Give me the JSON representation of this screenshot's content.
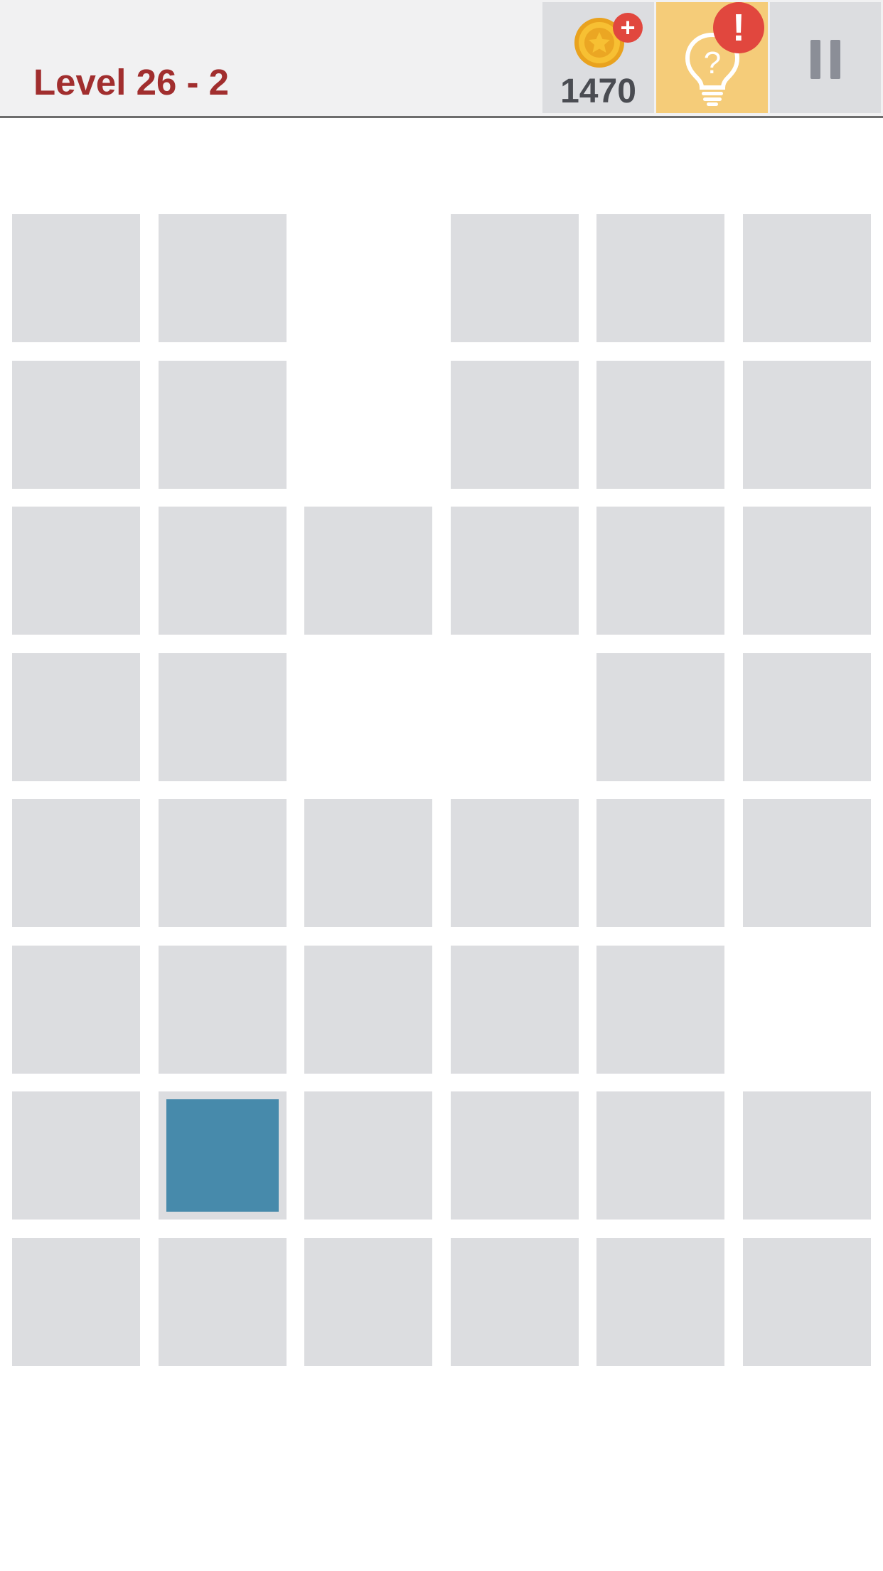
{
  "header": {
    "level_title": "Level 26 - 2",
    "coins": "1470",
    "coin_plus_symbol": "+",
    "hint_alert_symbol": "!"
  },
  "icons": {
    "coin": "coin-star-icon",
    "coin_add": "plus-icon",
    "hint": "lightbulb-question-icon",
    "hint_alert": "exclamation-icon",
    "pause": "pause-icon"
  },
  "colors": {
    "title": "#a12e2e",
    "header_bg": "#f1f1f2",
    "tile": "#dcdde0",
    "active_tile": "#478aab",
    "hint_bg": "#f5cc79",
    "badge": "#e1473e",
    "coin_count": "#4a4c52"
  },
  "board": {
    "rows": 8,
    "cols": 6,
    "grid": [
      [
        1,
        1,
        0,
        1,
        1,
        1
      ],
      [
        1,
        1,
        0,
        1,
        1,
        1
      ],
      [
        1,
        1,
        1,
        1,
        1,
        1
      ],
      [
        1,
        1,
        0,
        0,
        1,
        1
      ],
      [
        1,
        1,
        1,
        1,
        1,
        1
      ],
      [
        1,
        1,
        1,
        1,
        1,
        0
      ],
      [
        1,
        2,
        1,
        1,
        1,
        1
      ],
      [
        1,
        1,
        1,
        1,
        1,
        1
      ]
    ],
    "legend": {
      "0": "empty",
      "1": "tile",
      "2": "filled-tile"
    }
  }
}
